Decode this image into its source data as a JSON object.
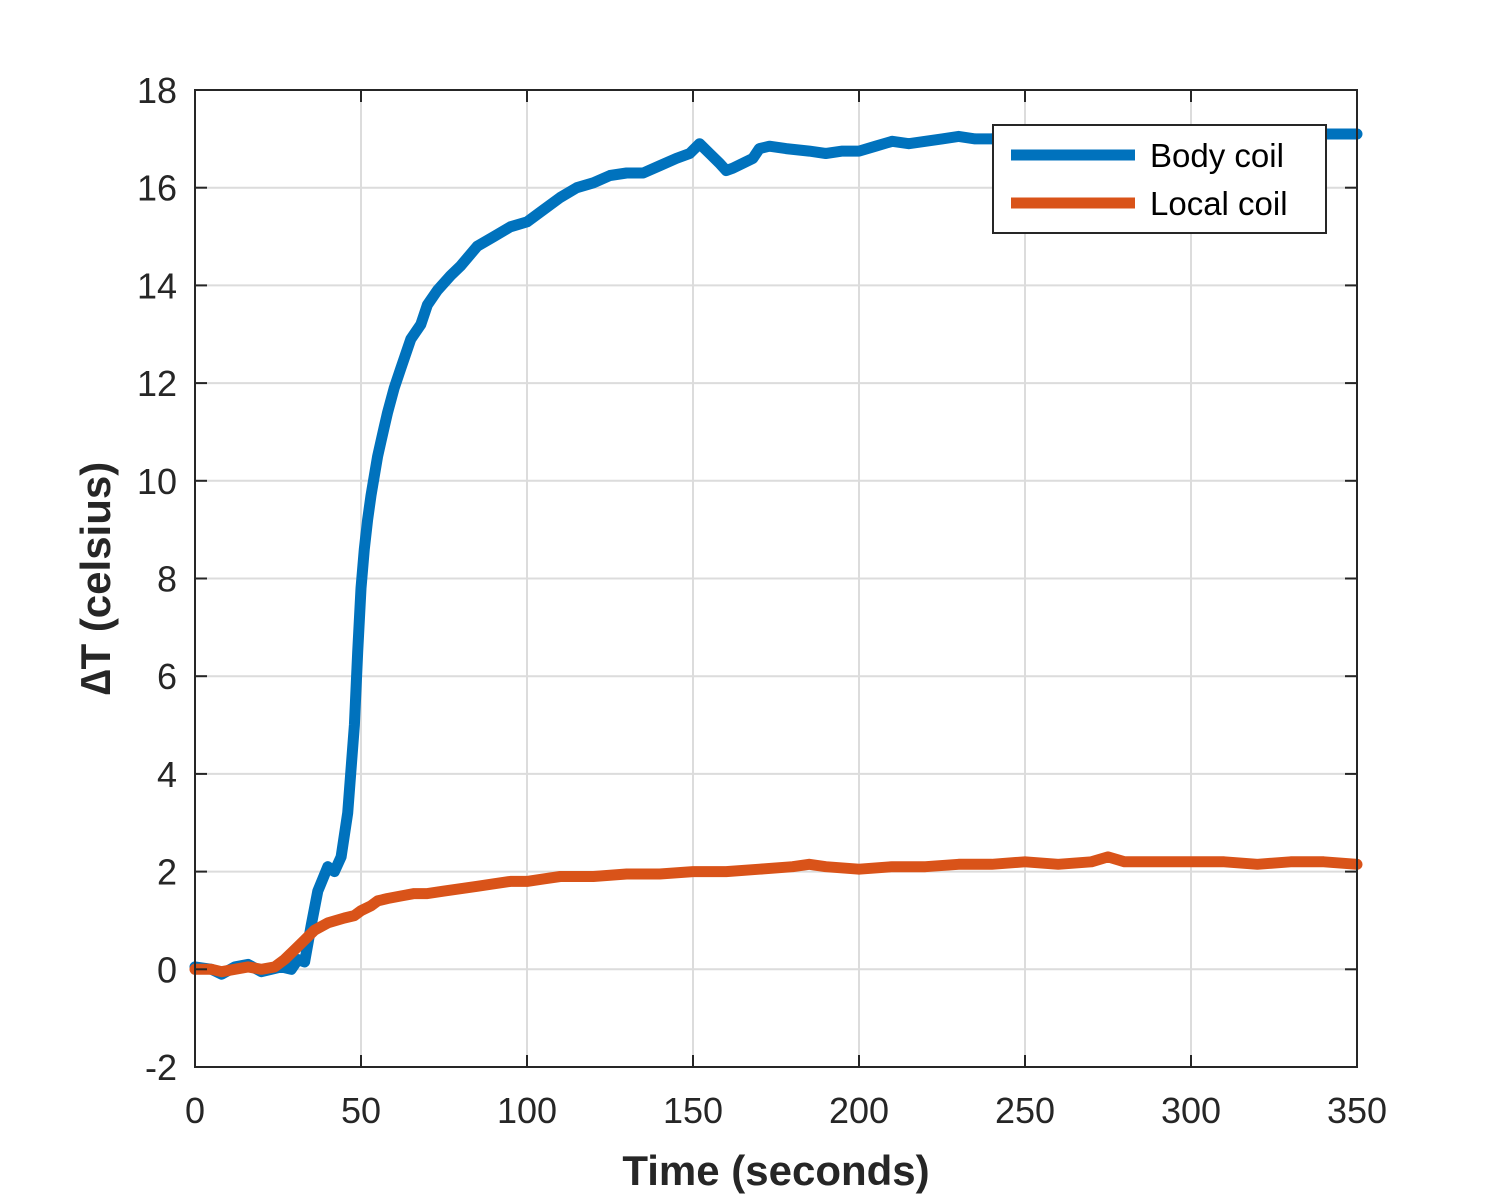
{
  "chart_data": {
    "type": "line",
    "title": "",
    "xlabel": "Time (seconds)",
    "ylabel": "∆T (celsius)",
    "xlim": [
      0,
      350
    ],
    "ylim": [
      -2,
      18
    ],
    "xticks": [
      0,
      50,
      100,
      150,
      200,
      250,
      300,
      350
    ],
    "yticks": [
      -2,
      0,
      2,
      4,
      6,
      8,
      10,
      12,
      14,
      16,
      18
    ],
    "grid": true,
    "legend_position": "top-right",
    "series": [
      {
        "name": "Body coil",
        "color": "#0072BD",
        "x": [
          0,
          5,
          8,
          12,
          16,
          20,
          23,
          26,
          29,
          31,
          33,
          35,
          37,
          40,
          41,
          42,
          44,
          46,
          48,
          49,
          50,
          51,
          52,
          53,
          54,
          55,
          56,
          57,
          58,
          60,
          62,
          65,
          68,
          70,
          73,
          77,
          80,
          85,
          90,
          95,
          100,
          105,
          110,
          115,
          120,
          125,
          130,
          135,
          140,
          145,
          149,
          152,
          155,
          158,
          160,
          162,
          165,
          168,
          170,
          173,
          178,
          185,
          190,
          195,
          200,
          205,
          210,
          215,
          220,
          225,
          230,
          235,
          240,
          245,
          250,
          260,
          270,
          280,
          290,
          300,
          310,
          320,
          330,
          340,
          350
        ],
        "y": [
          0.05,
          0.0,
          -0.1,
          0.05,
          0.1,
          -0.05,
          0.0,
          0.05,
          0.0,
          0.2,
          0.15,
          0.9,
          1.6,
          2.1,
          2.05,
          2.0,
          2.3,
          3.2,
          5.0,
          6.5,
          7.8,
          8.6,
          9.2,
          9.7,
          10.1,
          10.5,
          10.8,
          11.1,
          11.4,
          11.9,
          12.3,
          12.9,
          13.2,
          13.6,
          13.9,
          14.2,
          14.4,
          14.8,
          15.0,
          15.2,
          15.3,
          15.55,
          15.8,
          16.0,
          16.1,
          16.25,
          16.3,
          16.3,
          16.45,
          16.6,
          16.7,
          16.9,
          16.7,
          16.5,
          16.35,
          16.4,
          16.5,
          16.6,
          16.8,
          16.85,
          16.8,
          16.75,
          16.7,
          16.75,
          16.75,
          16.85,
          16.95,
          16.9,
          16.95,
          17.0,
          17.05,
          17.0,
          17.0,
          17.05,
          17.1,
          17.05,
          17.1,
          17.1,
          17.15,
          17.1,
          17.15,
          17.1,
          17.15,
          17.1,
          17.1
        ]
      },
      {
        "name": "Local coil",
        "color": "#D95319",
        "x": [
          0,
          5,
          8,
          12,
          16,
          20,
          24,
          27,
          30,
          33,
          36,
          40,
          45,
          48,
          50,
          53,
          55,
          58,
          62,
          66,
          70,
          75,
          80,
          85,
          90,
          95,
          100,
          105,
          110,
          120,
          130,
          140,
          150,
          160,
          170,
          180,
          185,
          190,
          200,
          210,
          220,
          230,
          240,
          250,
          260,
          270,
          275,
          280,
          290,
          300,
          310,
          320,
          330,
          340,
          350
        ],
        "y": [
          0.0,
          0.0,
          -0.05,
          0.0,
          0.05,
          0.0,
          0.05,
          0.2,
          0.4,
          0.6,
          0.8,
          0.95,
          1.05,
          1.1,
          1.2,
          1.3,
          1.4,
          1.45,
          1.5,
          1.55,
          1.55,
          1.6,
          1.65,
          1.7,
          1.75,
          1.8,
          1.8,
          1.85,
          1.9,
          1.9,
          1.95,
          1.95,
          2.0,
          2.0,
          2.05,
          2.1,
          2.15,
          2.1,
          2.05,
          2.1,
          2.1,
          2.15,
          2.15,
          2.2,
          2.15,
          2.2,
          2.3,
          2.2,
          2.2,
          2.2,
          2.2,
          2.15,
          2.2,
          2.2,
          2.15
        ]
      }
    ]
  }
}
